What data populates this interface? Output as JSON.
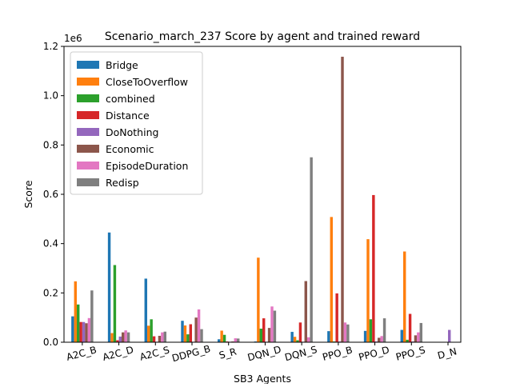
{
  "chart_data": {
    "type": "bar",
    "title": "Scenario_march_237 Score by agent and trained reward",
    "xlabel": "SB3 Agents",
    "ylabel": "Score",
    "y_scale_label": "1e6",
    "ylim": [
      0,
      1.2
    ],
    "yticks": [
      "0.0",
      "0.2",
      "0.4",
      "0.6",
      "0.8",
      "1.0",
      "1.2"
    ],
    "legend_position": "upper-left",
    "categories": [
      "A2C_B",
      "A2C_D",
      "A2C_S",
      "DDPG_B",
      "S_R",
      "DQN_D",
      "DQN_S",
      "PPO_B",
      "PPO_D",
      "PPO_S",
      "D_N"
    ],
    "series": [
      {
        "name": "Bridge",
        "color": "#1f77b4",
        "values": [
          0.105,
          0.445,
          0.258,
          0.087,
          0.012,
          0.003,
          0.042,
          0.045,
          0.046,
          0.05,
          0
        ]
      },
      {
        "name": "CloseToOverflow",
        "color": "#ff7f0e",
        "values": [
          0.247,
          0.037,
          0.067,
          0.068,
          0.047,
          0.343,
          0.022,
          0.508,
          0.418,
          0.368,
          0
        ]
      },
      {
        "name": "combined",
        "color": "#2ca02c",
        "values": [
          0.153,
          0.313,
          0.093,
          0.032,
          0.03,
          0.055,
          0.008,
          0.003,
          0.093,
          0.01,
          0
        ]
      },
      {
        "name": "Distance",
        "color": "#d62728",
        "values": [
          0.082,
          0.008,
          0.024,
          0.073,
          0.003,
          0.097,
          0.08,
          0.198,
          0.597,
          0.115,
          0
        ]
      },
      {
        "name": "DoNothing",
        "color": "#9467bd",
        "values": [
          0.082,
          0.023,
          0.002,
          0.002,
          0.002,
          0.002,
          0.002,
          0.003,
          0.003,
          0.003,
          0.05
        ]
      },
      {
        "name": "Economic",
        "color": "#8c564b",
        "values": [
          0.077,
          0.04,
          0.026,
          0.1,
          0.003,
          0.058,
          0.248,
          1.158,
          0.018,
          0.028,
          0
        ]
      },
      {
        "name": "EpisodeDuration",
        "color": "#e377c2",
        "values": [
          0.098,
          0.048,
          0.04,
          0.133,
          0.016,
          0.145,
          0.02,
          0.08,
          0.025,
          0.04,
          0
        ]
      },
      {
        "name": "Redisp",
        "color": "#7f7f7f",
        "values": [
          0.21,
          0.04,
          0.043,
          0.053,
          0.015,
          0.128,
          0.75,
          0.072,
          0.097,
          0.078,
          0
        ]
      }
    ]
  }
}
